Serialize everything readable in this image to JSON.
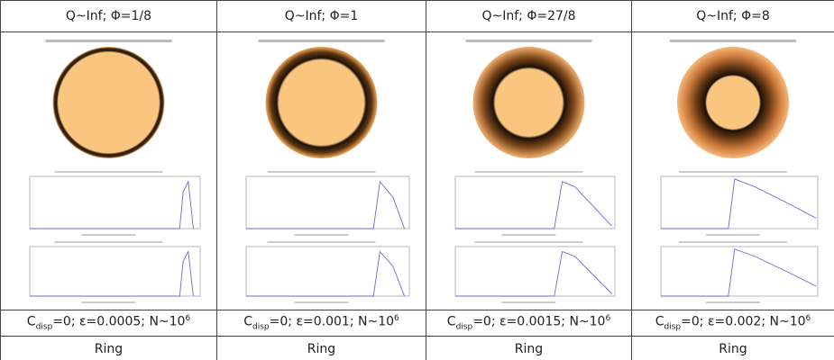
{
  "columns": [
    {
      "title": "Q~Inf; Φ=1/8",
      "caption": {
        "symbol": "C",
        "subscript": "disp",
        "text": "=0; ε=0.0005; N~10",
        "superscript": "6"
      },
      "label": "Ring"
    },
    {
      "title": "Q~Inf; Φ=1",
      "caption": {
        "symbol": "C",
        "subscript": "disp",
        "text": "=0; ε=0.001; N~10",
        "superscript": "6"
      },
      "label": "Ring"
    },
    {
      "title": "Q~Inf; Φ=27/8",
      "caption": {
        "symbol": "C",
        "subscript": "disp",
        "text": "=0; ε=0.0015; N~10",
        "superscript": "6"
      },
      "label": "Ring"
    },
    {
      "title": "Q~Inf; Φ=8",
      "caption": {
        "symbol": "C",
        "subscript": "disp",
        "text": "=0; ε=0.002; N~10",
        "superscript": "6"
      },
      "label": "Ring"
    }
  ]
}
